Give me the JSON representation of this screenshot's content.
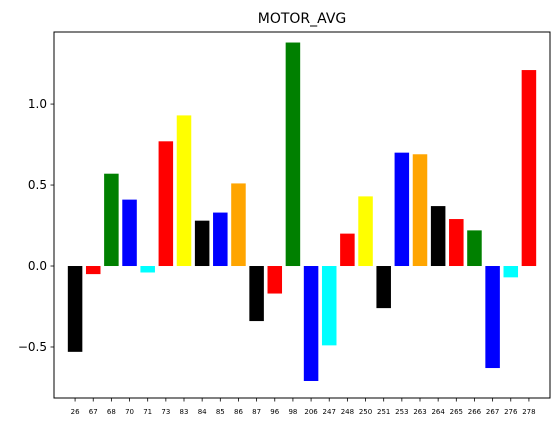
{
  "chart_data": {
    "type": "bar",
    "title": "MOTOR_AVG",
    "xlabel": "",
    "ylabel": "",
    "categories": [
      "26",
      "67",
      "68",
      "70",
      "71",
      "73",
      "83",
      "84",
      "85",
      "86",
      "87",
      "96",
      "98",
      "206",
      "247",
      "248",
      "250",
      "251",
      "253",
      "263",
      "264",
      "265",
      "266",
      "267",
      "276",
      "278"
    ],
    "values": [
      -0.53,
      -0.05,
      0.57,
      0.41,
      -0.04,
      0.77,
      0.93,
      0.28,
      0.33,
      0.51,
      -0.34,
      -0.17,
      1.38,
      -0.71,
      -0.49,
      0.2,
      0.43,
      -0.26,
      0.7,
      0.69,
      0.37,
      0.29,
      0.22,
      -0.63,
      -0.07,
      1.21
    ],
    "colors": [
      "#000000",
      "#ff0000",
      "#008000",
      "#0000ff",
      "#00ffff",
      "#ff0000",
      "#ffff00",
      "#000000",
      "#0000ff",
      "#ffa500",
      "#000000",
      "#ff0000",
      "#008000",
      "#0000ff",
      "#00ffff",
      "#ff0000",
      "#ffff00",
      "#000000",
      "#0000ff",
      "#ffa500",
      "#000000",
      "#ff0000",
      "#008000",
      "#0000ff",
      "#00ffff",
      "#ff0000"
    ],
    "ylim": [
      -0.815,
      1.445
    ],
    "yticks": [
      {
        "value": -0.5,
        "label": "−0.5"
      },
      {
        "value": 0.0,
        "label": "0.0"
      },
      {
        "value": 0.5,
        "label": "0.5"
      },
      {
        "value": 1.0,
        "label": "1.0"
      }
    ],
    "grid": false,
    "legend": "none"
  }
}
